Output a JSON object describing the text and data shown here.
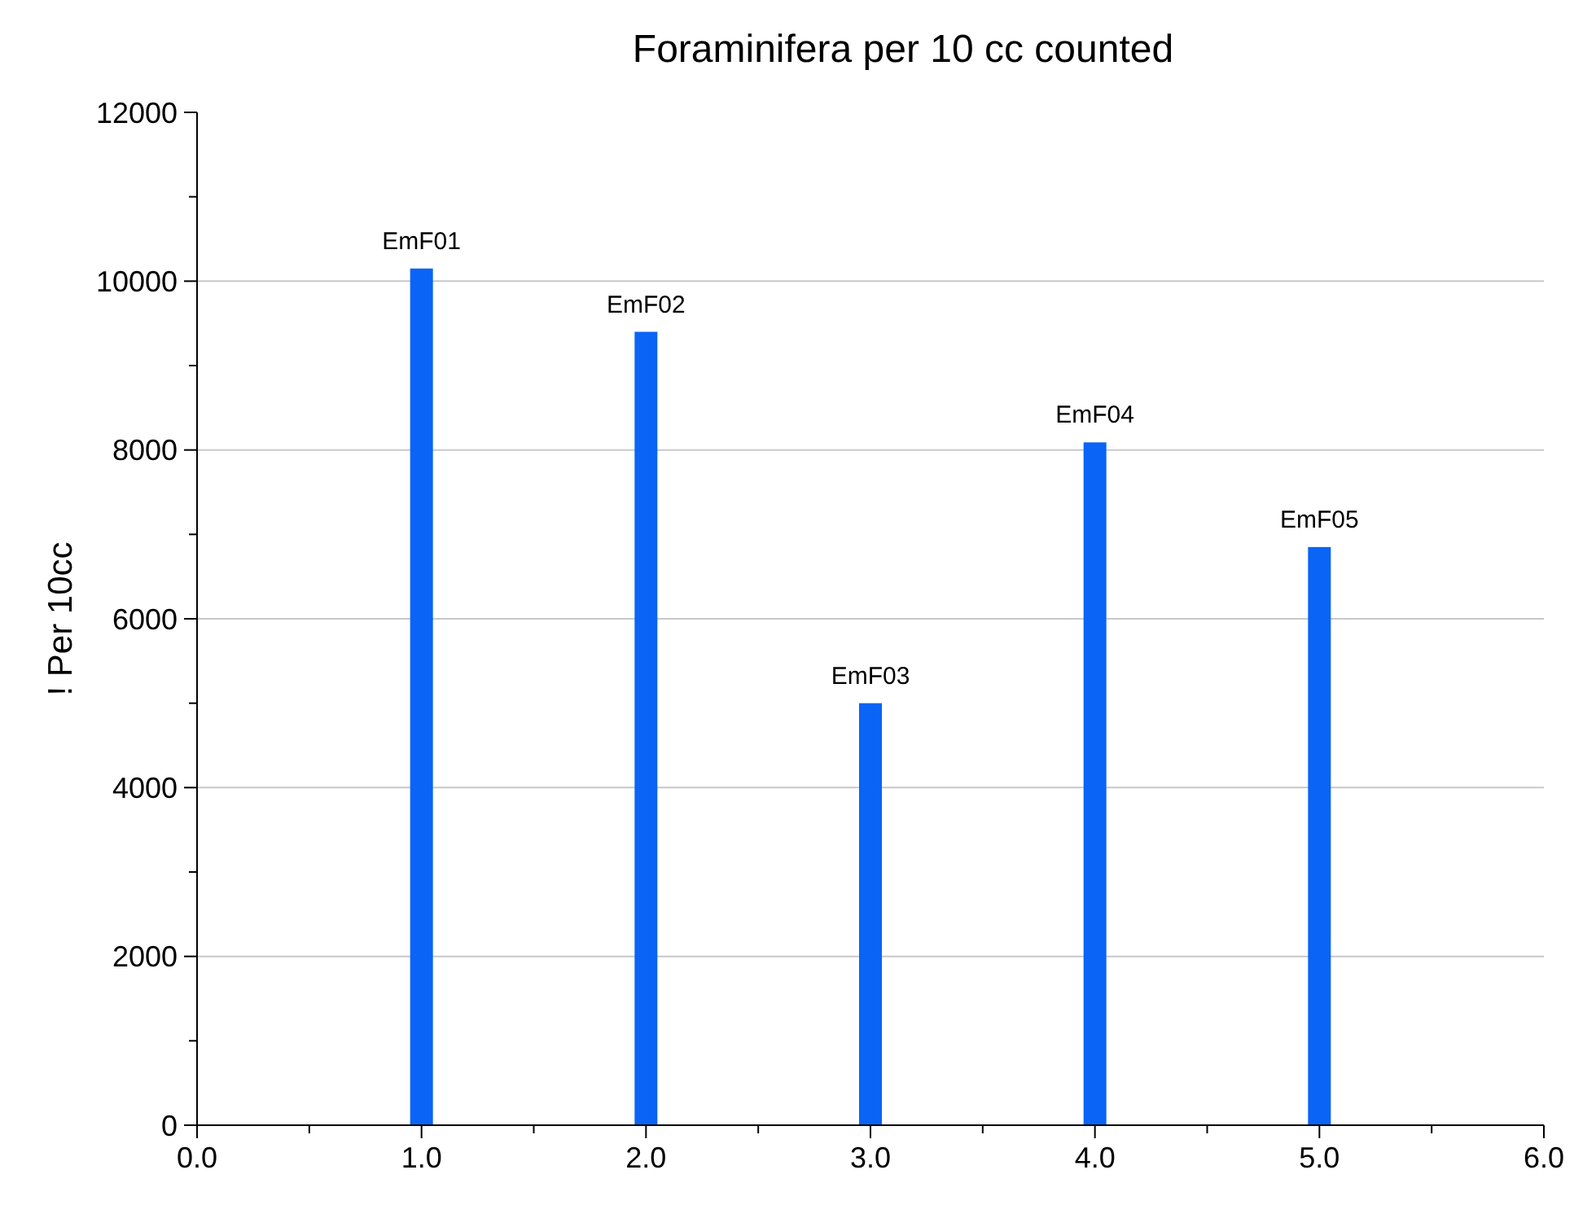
{
  "chart_data": {
    "type": "bar",
    "title": "Foraminifera per 10 cc counted",
    "ylabel": "! Per 10cc",
    "x": [
      1,
      2,
      3,
      4,
      5
    ],
    "values": [
      10150,
      9400,
      5000,
      8090,
      6850
    ],
    "color": "#0a64f5",
    "xlim": [
      0,
      6
    ],
    "xticks": [
      {
        "value": 0,
        "label": "0.0"
      },
      {
        "value": 0.5,
        "label": null
      },
      {
        "value": 1,
        "label": "1.0"
      },
      {
        "value": 1.5,
        "label": null
      },
      {
        "value": 2,
        "label": "2.0"
      },
      {
        "value": 2.5,
        "label": null
      },
      {
        "value": 3,
        "label": "3.0"
      },
      {
        "value": 3.5,
        "label": null
      },
      {
        "value": 4,
        "label": "4.0"
      },
      {
        "value": 4.5,
        "label": null
      },
      {
        "value": 5,
        "label": "5.0"
      },
      {
        "value": 5.5,
        "label": null
      },
      {
        "value": 6,
        "label": "6.0"
      }
    ],
    "ylim": [
      0,
      12000
    ],
    "yticks": [
      0,
      {
        "value": 1000,
        "label": null
      },
      2000,
      {
        "value": 3000,
        "label": null
      },
      4000,
      {
        "value": 5000,
        "label": null
      },
      6000,
      {
        "value": 7000,
        "label": null
      },
      8000,
      {
        "value": 9000,
        "label": null
      },
      10000,
      {
        "value": 11000,
        "label": null
      },
      12000
    ],
    "grid": "y",
    "annotations": [
      {
        "text": "EmF01",
        "x": 1,
        "y": 10150
      },
      {
        "text": "EmF02",
        "x": 2,
        "y": 9400
      },
      {
        "text": "EmF03",
        "x": 3,
        "y": 5000
      },
      {
        "text": "EmF04",
        "x": 4,
        "y": 8090
      },
      {
        "text": "EmF05",
        "x": 5,
        "y": 6850
      }
    ]
  }
}
